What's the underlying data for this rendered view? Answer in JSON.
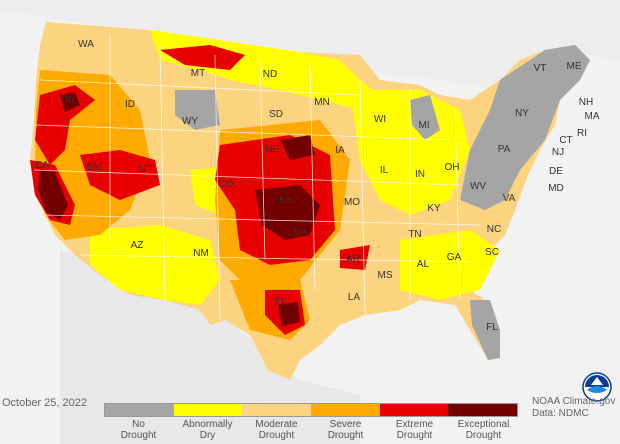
{
  "date": "October 25, 2022",
  "credit": {
    "line1": "NOAA Climate.gov",
    "line2": "Data: NDMC"
  },
  "legend": [
    {
      "line1": "No",
      "line2": "Drought",
      "color": "#a5a5a5"
    },
    {
      "line1": "Abnormally",
      "line2": "Dry",
      "color": "#ffff00"
    },
    {
      "line1": "Moderate",
      "line2": "Drought",
      "color": "#fcd37f"
    },
    {
      "line1": "Severe",
      "line2": "Drought",
      "color": "#ffaa00"
    },
    {
      "line1": "Extreme",
      "line2": "Drought",
      "color": "#e60000"
    },
    {
      "line1": "Exceptional",
      "line2": "Drought",
      "color": "#730000"
    }
  ],
  "states": [
    "WA",
    "ID",
    "MT",
    "ND",
    "MN",
    "OR",
    "WY",
    "SD",
    "WI",
    "MI",
    "NE",
    "IA",
    "CA",
    "NV",
    "UT",
    "CO",
    "KS",
    "MO",
    "IL",
    "IN",
    "OH",
    "AZ",
    "NM",
    "OK",
    "AR",
    "TN",
    "KY",
    "TX",
    "LA",
    "MS",
    "AL",
    "GA",
    "FL",
    "SC",
    "NC",
    "VA",
    "WV",
    "PA",
    "NY",
    "VT",
    "ME",
    "NH",
    "MA",
    "RI",
    "CT",
    "NJ",
    "DE",
    "MD"
  ],
  "logo": "noaa-logo-icon"
}
